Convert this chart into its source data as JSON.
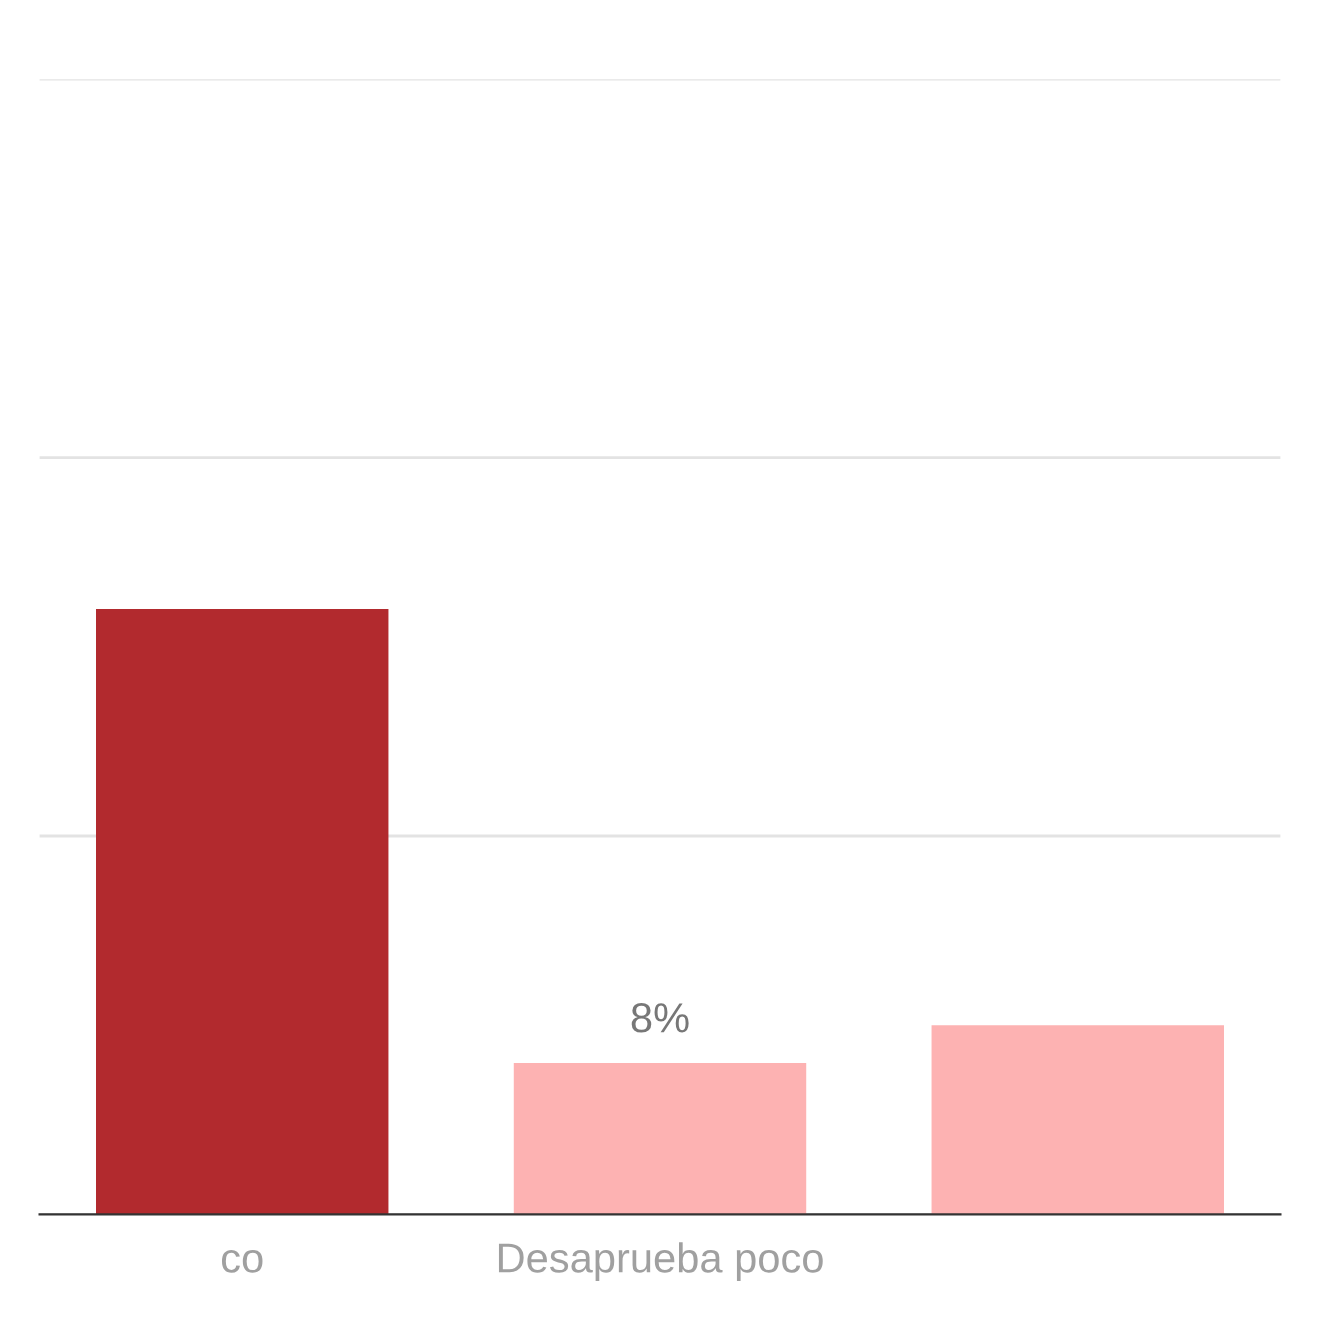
{
  "chart_data": {
    "type": "bar",
    "categories": [
      "co",
      "Desaprueba poco",
      null
    ],
    "values": [
      32,
      8,
      10
    ],
    "colors": [
      "#b22a2e",
      "#fdb2b2",
      "#fdb2b2"
    ],
    "value_labels": [
      null,
      "8%",
      null
    ],
    "ylim": [
      0,
      60
    ],
    "yticks": [
      {
        "value": 0,
        "label": null
      },
      {
        "value": 20,
        "label": null
      },
      {
        "value": 40,
        "label": null
      },
      {
        "value": 60,
        "label": null
      }
    ],
    "grid": "y",
    "tick_labels": "x"
  }
}
